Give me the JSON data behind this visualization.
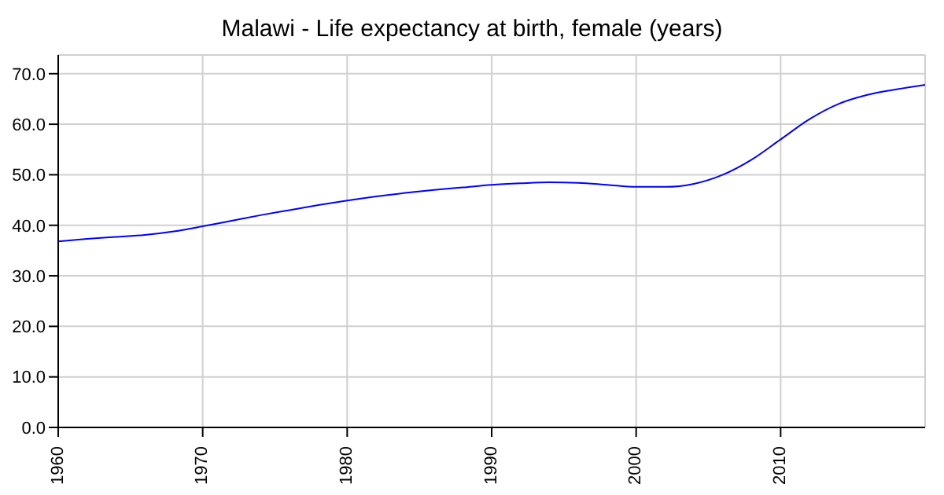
{
  "chart_data": {
    "type": "line",
    "title": "Malawi - Life expectancy at birth, female (years)",
    "x": [
      1960,
      1962,
      1964,
      1966,
      1968,
      1970,
      1972,
      1974,
      1976,
      1978,
      1980,
      1982,
      1984,
      1986,
      1988,
      1990,
      1992,
      1994,
      1996,
      1998,
      2000,
      2002,
      2004,
      2006,
      2008,
      2010,
      2012,
      2014,
      2016,
      2018,
      2020
    ],
    "series": [
      {
        "color": "#0000ff",
        "values": [
          36.8,
          37.3,
          37.7,
          38.1,
          38.8,
          39.8,
          40.9,
          42.0,
          43.0,
          44.0,
          44.9,
          45.7,
          46.4,
          47.0,
          47.5,
          48.0,
          48.3,
          48.5,
          48.4,
          48.0,
          47.6,
          47.6,
          48.2,
          50.0,
          53.0,
          57.0,
          61.0,
          64.0,
          65.8,
          66.9,
          67.8
        ]
      }
    ],
    "xlim": [
      1960,
      2020
    ],
    "xticks": [
      1960,
      1970,
      1980,
      1990,
      2000,
      2010
    ],
    "ylim": [
      0,
      73.7
    ],
    "yticks": [
      {
        "value": 0,
        "label": "0.0"
      },
      {
        "value": 10,
        "label": "10.0"
      },
      {
        "value": 20,
        "label": "20.0"
      },
      {
        "value": 30,
        "label": "30.0"
      },
      {
        "value": 40,
        "label": "40.0"
      },
      {
        "value": 50,
        "label": "50.0"
      },
      {
        "value": 60,
        "label": "60.0"
      },
      {
        "value": 70,
        "label": "70.0"
      }
    ],
    "grid": true,
    "marker": "none",
    "line_style": "solid"
  }
}
